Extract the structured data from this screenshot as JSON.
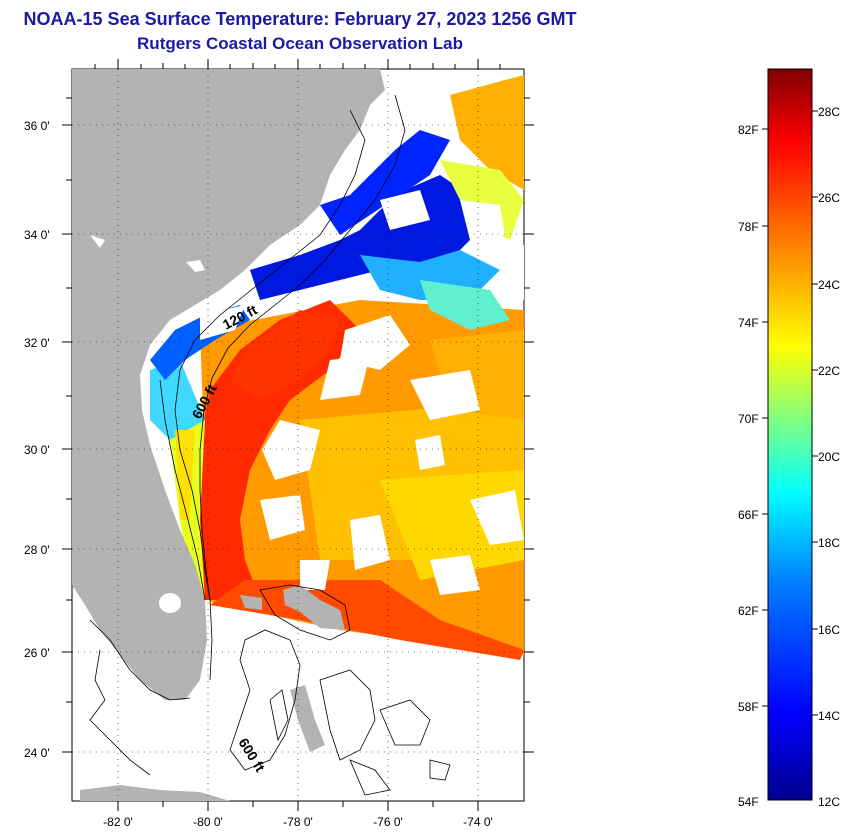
{
  "header": {
    "title": "NOAA-15 Sea Surface Temperature:  February 27, 2023 1256 GMT",
    "subtitle": "Rutgers Coastal Ocean Observation Lab"
  },
  "map": {
    "lon_range": [
      -83,
      -73
    ],
    "lat_range": [
      23,
      37
    ],
    "lat_ticks": [
      "36 0'",
      "34 0'",
      "32 0'",
      "30 0'",
      "28 0'",
      "26 0'",
      "24 0'"
    ],
    "lon_ticks": [
      "-82 0'",
      "-80 0'",
      "-78 0'",
      "-76 0'",
      "-74 0'"
    ],
    "isobaths": [
      "120 ft",
      "600 ft",
      "600 ft"
    ],
    "colors": {
      "land": "#b3b3b3",
      "no_data": "#ffffff",
      "contour": "#000000"
    }
  },
  "colorbar": {
    "fahrenheit": [
      "82F",
      "78F",
      "74F",
      "70F",
      "66F",
      "62F",
      "58F",
      "54F"
    ],
    "celsius": [
      "28C",
      "26C",
      "24C",
      "22C",
      "20C",
      "18C",
      "16C",
      "14C",
      "12C"
    ],
    "range_c": [
      12,
      29.5
    ],
    "palette": [
      "#00008f",
      "#0000ff",
      "#0080ff",
      "#00ffff",
      "#80ff80",
      "#ffff00",
      "#ff8000",
      "#ff0000",
      "#800000"
    ]
  }
}
